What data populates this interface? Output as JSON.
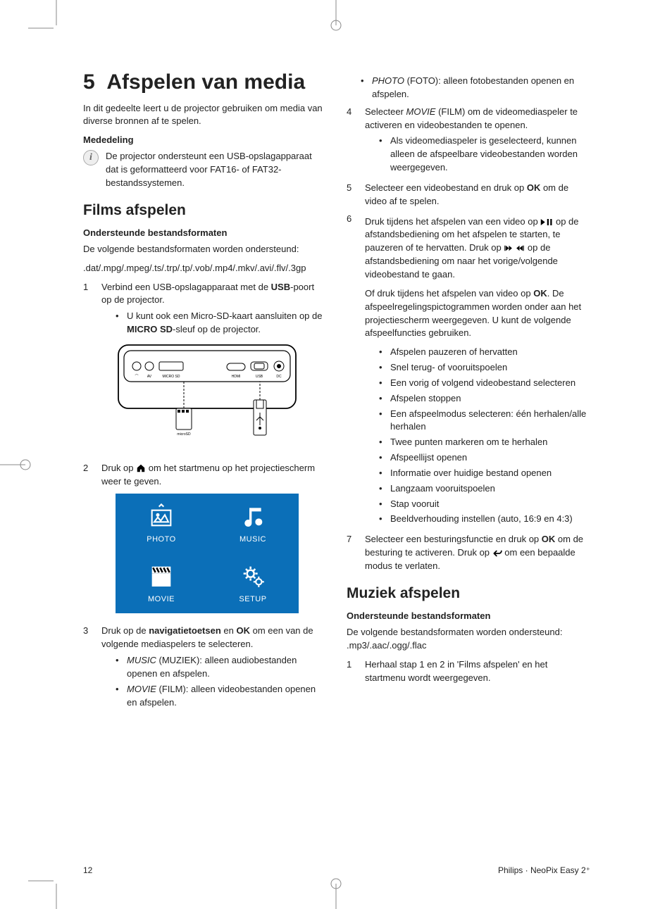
{
  "chapter_number": "5",
  "chapter_title": "Afspelen van media",
  "intro": "In dit gedeelte leert u de projector gebruiken om media van diverse bronnen af te spelen.",
  "notice_label": "Mededeling",
  "notice_text": "De projector ondersteunt een USB-opslagapparaat dat is geformatteerd voor FAT16- of FAT32-bestandssystemen.",
  "section_films": "Films afspelen",
  "formats_label": "Ondersteunde bestandsformaten",
  "formats_intro": "De volgende bestandsformaten worden ondersteund:",
  "film_formats": ".dat/.mpg/.mpeg/.ts/.trp/.tp/.vob/.mp4/.mkv/.avi/.flv/.3gp",
  "step1_pre": "Verbind een USB-opslagapparaat met de ",
  "step1_usb": "USB",
  "step1_post": "-poort op de projector.",
  "step1_sub_pre": "U kunt ook een Micro-SD-kaart aansluiten op de ",
  "step1_sub_bold": "MICRO SD",
  "step1_sub_post": "-sleuf op de projector.",
  "step2_pre": "Druk op ",
  "step2_post": " om het startmenu op het projectiescherm weer te geven.",
  "menu": {
    "photo": "PHOTO",
    "music": "MUSIC",
    "movie": "MOVIE",
    "setup": "SETUP"
  },
  "step3_pre": "Druk op de ",
  "step3_nav": "navigatietoetsen",
  "step3_mid": " en ",
  "step3_ok": "OK",
  "step3_post": " om een van de volgende mediaspelers te selecteren.",
  "step3_music_i": "MUSIC",
  "step3_music_t": " (MUZIEK): alleen audiobestanden openen en afspelen.",
  "step3_movie_i": "MOVIE",
  "step3_movie_t": " (FILM): alleen videobestanden openen en afspelen.",
  "step3_photo_i": "PHOTO",
  "step3_photo_t": " (FOTO): alleen fotobestanden openen en afspelen.",
  "step4_pre": "Selecteer ",
  "step4_movie_i": "MOVIE",
  "step4_post": " (FILM) om de videomediaspeler te activeren en videobestanden te openen.",
  "step4_sub": "Als videomediaspeler is geselecteerd, kunnen alleen de afspeelbare videobestanden worden weergegeven.",
  "step5_pre": "Selecteer een videobestand en druk op ",
  "step5_ok": "OK",
  "step5_post": " om de video af te spelen.",
  "step6_a_pre": "Druk tijdens het afspelen van een video op ",
  "step6_a_mid": " op de afstandsbediening om het afspelen te starten, te pauzeren of te hervatten. Druk op ",
  "step6_a_post": " op de afstandsbediening om naar het vorige/volgende videobestand te gaan.",
  "step6_b_pre": "Of druk tijdens het afspelen van video op ",
  "step6_b_ok": "OK",
  "step6_b_post": ". De afspeelregelingspictogrammen worden onder aan het projectiescherm weergegeven. U kunt de volgende afspeelfuncties gebruiken.",
  "step6_bullets": [
    "Afspelen pauzeren of hervatten",
    "Snel terug- of vooruitspoelen",
    "Een vorig of volgend videobestand selecteren",
    "Afspelen stoppen",
    "Een afspeelmodus selecteren: één herhalen/alle herhalen",
    "Twee punten markeren om te herhalen",
    "Afspeellijst openen",
    "Informatie over huidige bestand openen",
    "Langzaam vooruitspoelen",
    "Stap vooruit",
    "Beeldverhouding instellen (auto, 16:9 en 4:3)"
  ],
  "step7_pre": "Selecteer een besturingsfunctie en druk op ",
  "step7_ok": "OK",
  "step7_mid": " om de besturing te activeren. Druk op ",
  "step7_post": " om een bepaalde modus te verlaten.",
  "section_music": "Muziek afspelen",
  "music_formats_intro": "De volgende bestandsformaten worden ondersteund: .mp3/.aac/.ogg/.flac",
  "music_step1": "Herhaal stap 1 en 2 in 'Films afspelen' en het startmenu wordt weergegeven.",
  "page_number": "12",
  "product": "Philips · NeoPix Easy 2⁺",
  "colors": {
    "menu_bg": "#0b6fb8"
  }
}
